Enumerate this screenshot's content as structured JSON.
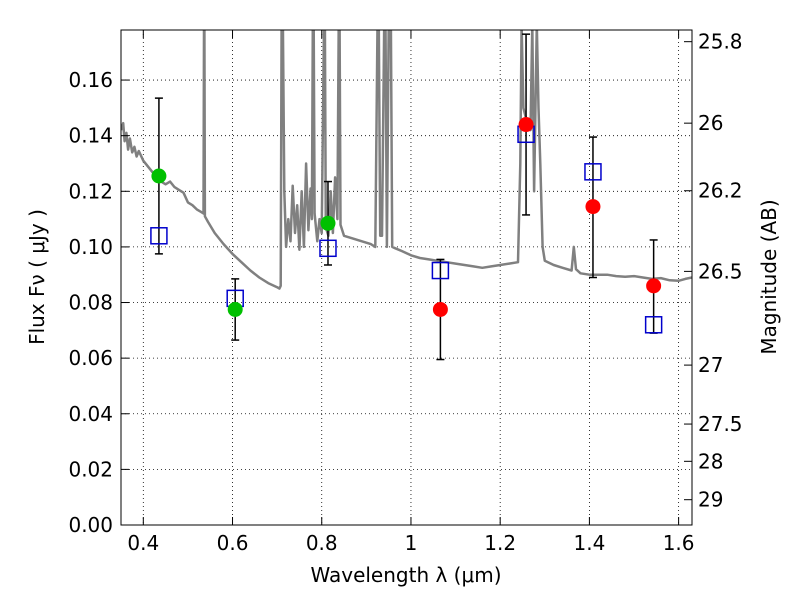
{
  "chart_data": {
    "type": "scatter",
    "xlabel": "Wavelength  λ (μm)",
    "ylabel": "Flux  Fν  ( μJy )",
    "ylabel_right": "Magnitude (AB)",
    "xlim": [
      0.35,
      1.63
    ],
    "ylim": [
      0.0,
      0.178
    ],
    "grid": true,
    "x_ticks": [
      0.4,
      0.6,
      0.8,
      1.0,
      1.2,
      1.4,
      1.6
    ],
    "x_tick_labels": [
      "0.4",
      "0.6",
      "0.8",
      "1",
      "1.2",
      "1.4",
      "1.6"
    ],
    "y_ticks": [
      0.0,
      0.02,
      0.04,
      0.06,
      0.08,
      0.1,
      0.12,
      0.14,
      0.16
    ],
    "y_tick_labels": [
      "0.00",
      "0.02",
      "0.04",
      "0.06",
      "0.08",
      "0.10",
      "0.12",
      "0.14",
      "0.16"
    ],
    "right_ticks": [
      {
        "label": "25.8",
        "flux": 0.1738
      },
      {
        "label": "26",
        "flux": 0.1445
      },
      {
        "label": "26.2",
        "flux": 0.1202
      },
      {
        "label": "26.5",
        "flux": 0.0912
      },
      {
        "label": "27",
        "flux": 0.0575
      },
      {
        "label": "27.5",
        "flux": 0.0363
      },
      {
        "label": "28",
        "flux": 0.0229
      },
      {
        "label": "29",
        "flux": 0.0091
      }
    ],
    "colors": {
      "model_line": "#808080",
      "green_points": "#00c000",
      "red_points": "#ff0000",
      "model_squares": "#0000cc",
      "error_bars": "#000000"
    },
    "series": [
      {
        "kind": "observed",
        "color": "green",
        "points": [
          {
            "x": 0.435,
            "y": 0.1255,
            "yerr_low": 0.0975,
            "yerr_high": 0.1535
          },
          {
            "x": 0.606,
            "y": 0.0775,
            "yerr_low": 0.0665,
            "yerr_high": 0.0885
          },
          {
            "x": 0.814,
            "y": 0.1085,
            "yerr_low": 0.0935,
            "yerr_high": 0.1235
          }
        ]
      },
      {
        "kind": "observed",
        "color": "red",
        "points": [
          {
            "x": 1.066,
            "y": 0.0775,
            "yerr_low": 0.0595,
            "yerr_high": 0.0955
          },
          {
            "x": 1.258,
            "y": 0.144,
            "yerr_low": 0.1115,
            "yerr_high": 0.1765
          },
          {
            "x": 1.408,
            "y": 0.1145,
            "yerr_low": 0.089,
            "yerr_high": 0.1395
          },
          {
            "x": 1.544,
            "y": 0.086,
            "yerr_low": 0.069,
            "yerr_high": 0.1025
          }
        ]
      },
      {
        "kind": "model-synthetic",
        "marker": "square",
        "points": [
          {
            "x": 0.435,
            "y": 0.104
          },
          {
            "x": 0.606,
            "y": 0.0815
          },
          {
            "x": 0.814,
            "y": 0.0995
          },
          {
            "x": 1.066,
            "y": 0.0915
          },
          {
            "x": 1.258,
            "y": 0.1405
          },
          {
            "x": 1.408,
            "y": 0.127
          },
          {
            "x": 1.544,
            "y": 0.072
          }
        ]
      }
    ],
    "model_spectrum": [
      [
        0.35,
        0.142
      ],
      [
        0.355,
        0.1445
      ],
      [
        0.358,
        0.138
      ],
      [
        0.362,
        0.141
      ],
      [
        0.366,
        0.135
      ],
      [
        0.37,
        0.139
      ],
      [
        0.375,
        0.134
      ],
      [
        0.38,
        0.136
      ],
      [
        0.385,
        0.1325
      ],
      [
        0.39,
        0.1345
      ],
      [
        0.4,
        0.131
      ],
      [
        0.41,
        0.129
      ],
      [
        0.42,
        0.127
      ],
      [
        0.43,
        0.1255
      ],
      [
        0.44,
        0.1235
      ],
      [
        0.45,
        0.1225
      ],
      [
        0.46,
        0.1235
      ],
      [
        0.47,
        0.1215
      ],
      [
        0.48,
        0.1205
      ],
      [
        0.49,
        0.1195
      ],
      [
        0.5,
        0.116
      ],
      [
        0.51,
        0.115
      ],
      [
        0.52,
        0.1135
      ],
      [
        0.53,
        0.1125
      ],
      [
        0.535,
        0.112
      ],
      [
        0.536,
        0.18
      ],
      [
        0.537,
        0.18
      ],
      [
        0.538,
        0.111
      ],
      [
        0.545,
        0.109
      ],
      [
        0.56,
        0.105
      ],
      [
        0.58,
        0.101
      ],
      [
        0.6,
        0.0975
      ],
      [
        0.62,
        0.0945
      ],
      [
        0.64,
        0.0915
      ],
      [
        0.66,
        0.089
      ],
      [
        0.68,
        0.087
      ],
      [
        0.7,
        0.0855
      ],
      [
        0.705,
        0.085
      ],
      [
        0.708,
        0.086
      ],
      [
        0.71,
        0.18
      ],
      [
        0.713,
        0.18
      ],
      [
        0.716,
        0.12
      ],
      [
        0.72,
        0.1
      ],
      [
        0.725,
        0.11
      ],
      [
        0.73,
        0.102
      ],
      [
        0.735,
        0.122
      ],
      [
        0.74,
        0.105
      ],
      [
        0.745,
        0.115
      ],
      [
        0.75,
        0.099
      ],
      [
        0.755,
        0.12
      ],
      [
        0.76,
        0.1
      ],
      [
        0.765,
        0.13
      ],
      [
        0.77,
        0.106
      ],
      [
        0.775,
        0.121
      ],
      [
        0.778,
        0.11
      ],
      [
        0.78,
        0.18
      ],
      [
        0.782,
        0.18
      ],
      [
        0.784,
        0.112
      ],
      [
        0.79,
        0.102
      ],
      [
        0.795,
        0.11
      ],
      [
        0.8,
        0.105
      ],
      [
        0.805,
        0.18
      ],
      [
        0.807,
        0.18
      ],
      [
        0.809,
        0.107
      ],
      [
        0.815,
        0.104
      ],
      [
        0.82,
        0.12
      ],
      [
        0.825,
        0.105
      ],
      [
        0.83,
        0.125
      ],
      [
        0.835,
        0.11
      ],
      [
        0.838,
        0.18
      ],
      [
        0.84,
        0.18
      ],
      [
        0.842,
        0.108
      ],
      [
        0.85,
        0.104
      ],
      [
        0.87,
        0.103
      ],
      [
        0.89,
        0.102
      ],
      [
        0.91,
        0.101
      ],
      [
        0.92,
        0.1
      ],
      [
        0.925,
        0.18
      ],
      [
        0.928,
        0.18
      ],
      [
        0.931,
        0.104
      ],
      [
        0.935,
        0.104
      ],
      [
        0.94,
        0.18
      ],
      [
        0.943,
        0.18
      ],
      [
        0.946,
        0.1
      ],
      [
        0.95,
        0.18
      ],
      [
        0.955,
        0.18
      ],
      [
        0.958,
        0.1
      ],
      [
        0.965,
        0.0995
      ],
      [
        0.98,
        0.0985
      ],
      [
        1.0,
        0.097
      ],
      [
        1.02,
        0.096
      ],
      [
        1.04,
        0.0955
      ],
      [
        1.06,
        0.095
      ],
      [
        1.08,
        0.0945
      ],
      [
        1.1,
        0.094
      ],
      [
        1.12,
        0.0935
      ],
      [
        1.14,
        0.093
      ],
      [
        1.16,
        0.0925
      ],
      [
        1.18,
        0.093
      ],
      [
        1.2,
        0.0935
      ],
      [
        1.22,
        0.094
      ],
      [
        1.24,
        0.0945
      ],
      [
        1.245,
        0.13
      ],
      [
        1.248,
        0.18
      ],
      [
        1.252,
        0.15
      ],
      [
        1.26,
        0.145
      ],
      [
        1.268,
        0.142
      ],
      [
        1.272,
        0.18
      ],
      [
        1.276,
        0.12
      ],
      [
        1.282,
        0.18
      ],
      [
        1.286,
        0.15
      ],
      [
        1.29,
        0.13
      ],
      [
        1.295,
        0.1
      ],
      [
        1.3,
        0.095
      ],
      [
        1.32,
        0.0935
      ],
      [
        1.34,
        0.0925
      ],
      [
        1.36,
        0.0915
      ],
      [
        1.365,
        0.1
      ],
      [
        1.37,
        0.092
      ],
      [
        1.38,
        0.0905
      ],
      [
        1.4,
        0.09
      ],
      [
        1.42,
        0.09
      ],
      [
        1.44,
        0.09
      ],
      [
        1.46,
        0.0895
      ],
      [
        1.48,
        0.0893
      ],
      [
        1.5,
        0.0895
      ],
      [
        1.52,
        0.089
      ],
      [
        1.54,
        0.0885
      ],
      [
        1.56,
        0.0888
      ],
      [
        1.58,
        0.088
      ],
      [
        1.6,
        0.0878
      ],
      [
        1.615,
        0.0885
      ],
      [
        1.63,
        0.089
      ]
    ]
  }
}
